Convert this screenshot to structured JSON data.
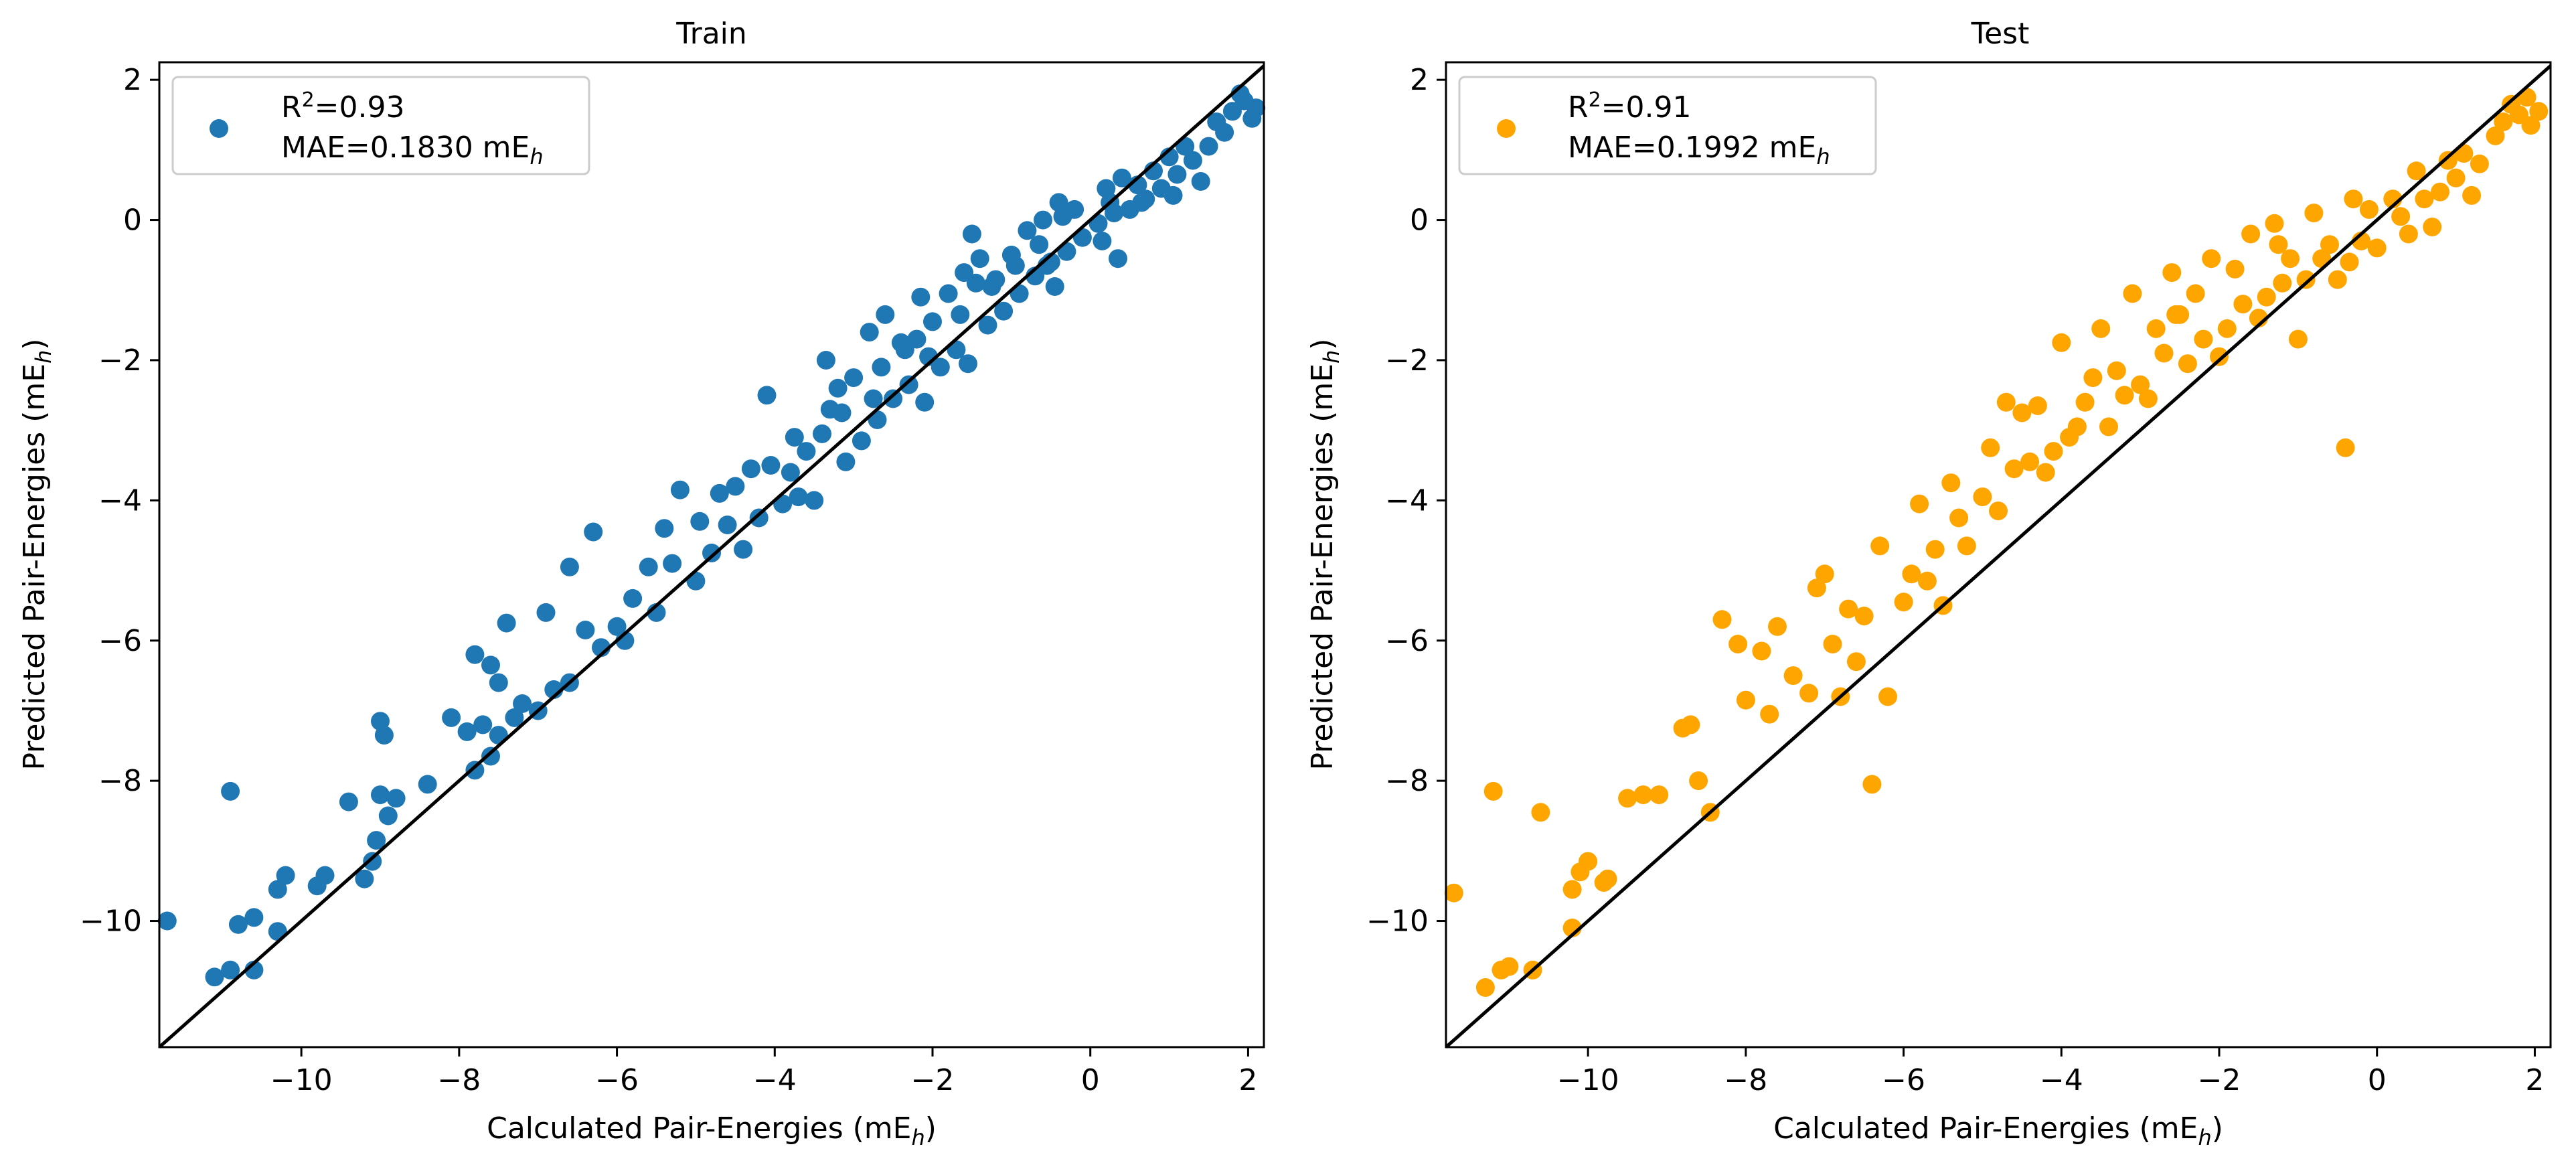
{
  "figure": {
    "background": "#ffffff"
  },
  "chart_data": [
    {
      "type": "scatter",
      "title": "Train",
      "xlabel": "Calculated Pair-Energies (mE",
      "xlabel_sub": "h",
      "xlabel_tail": ")",
      "ylabel": "Predicted Pair-Energies (mE",
      "ylabel_sub": "h",
      "ylabel_tail": ")",
      "xlim": [
        -11.8,
        2.2
      ],
      "ylim": [
        -11.8,
        2.25
      ],
      "xticks": [
        -10,
        -8,
        -6,
        -4,
        -2,
        0,
        2
      ],
      "yticks": [
        -10,
        -8,
        -6,
        -4,
        -2,
        0,
        2
      ],
      "grid": false,
      "color": "#1f77b4",
      "legend": {
        "placement": "top-left",
        "line1_prefix": "R",
        "line1_sup": "2",
        "line1_value": "=0.93",
        "line2_prefix": "MAE=0.1830 mE",
        "line2_sub": "h"
      },
      "reference_line": {
        "from": [
          -11.8,
          -11.8
        ],
        "to": [
          2.2,
          2.2
        ],
        "color": "#000000"
      },
      "points": [
        [
          -11.7,
          -10.0
        ],
        [
          -11.1,
          -10.8
        ],
        [
          -10.9,
          -10.7
        ],
        [
          -10.6,
          -10.7
        ],
        [
          -10.8,
          -10.05
        ],
        [
          -10.3,
          -10.15
        ],
        [
          -10.9,
          -8.15
        ],
        [
          -10.6,
          -9.95
        ],
        [
          -10.3,
          -9.55
        ],
        [
          -10.2,
          -9.35
        ],
        [
          -9.8,
          -9.5
        ],
        [
          -9.7,
          -9.35
        ],
        [
          -9.2,
          -9.4
        ],
        [
          -9.1,
          -9.15
        ],
        [
          -9.05,
          -8.85
        ],
        [
          -8.9,
          -8.5
        ],
        [
          -9.0,
          -7.15
        ],
        [
          -8.95,
          -7.35
        ],
        [
          -9.4,
          -8.3
        ],
        [
          -9.0,
          -8.2
        ],
        [
          -8.8,
          -8.25
        ],
        [
          -8.4,
          -8.05
        ],
        [
          -8.1,
          -7.1
        ],
        [
          -7.9,
          -7.3
        ],
        [
          -7.7,
          -7.2
        ],
        [
          -7.8,
          -7.85
        ],
        [
          -7.6,
          -7.65
        ],
        [
          -7.5,
          -7.35
        ],
        [
          -7.3,
          -7.1
        ],
        [
          -7.4,
          -5.75
        ],
        [
          -7.6,
          -6.35
        ],
        [
          -7.8,
          -6.2
        ],
        [
          -7.5,
          -6.6
        ],
        [
          -7.2,
          -6.9
        ],
        [
          -7.0,
          -7.0
        ],
        [
          -6.8,
          -6.7
        ],
        [
          -6.6,
          -6.6
        ],
        [
          -6.9,
          -5.6
        ],
        [
          -6.6,
          -4.95
        ],
        [
          -6.3,
          -4.45
        ],
        [
          -6.4,
          -5.85
        ],
        [
          -6.2,
          -6.1
        ],
        [
          -6.0,
          -5.8
        ],
        [
          -5.8,
          -5.4
        ],
        [
          -5.6,
          -4.95
        ],
        [
          -5.4,
          -4.4
        ],
        [
          -5.2,
          -3.85
        ],
        [
          -5.5,
          -5.6
        ],
        [
          -5.0,
          -5.15
        ],
        [
          -4.8,
          -4.75
        ],
        [
          -4.6,
          -4.35
        ],
        [
          -4.5,
          -3.8
        ],
        [
          -4.3,
          -3.55
        ],
        [
          -4.1,
          -2.5
        ],
        [
          -4.4,
          -4.7
        ],
        [
          -4.2,
          -4.25
        ],
        [
          -3.9,
          -4.05
        ],
        [
          -3.8,
          -3.6
        ],
        [
          -3.6,
          -3.3
        ],
        [
          -3.4,
          -3.05
        ],
        [
          -3.3,
          -2.7
        ],
        [
          -3.2,
          -2.4
        ],
        [
          -3.0,
          -2.25
        ],
        [
          -2.8,
          -1.6
        ],
        [
          -2.6,
          -1.35
        ],
        [
          -2.4,
          -1.75
        ],
        [
          -3.5,
          -4.0
        ],
        [
          -3.1,
          -3.45
        ],
        [
          -2.9,
          -3.15
        ],
        [
          -2.7,
          -2.85
        ],
        [
          -2.5,
          -2.55
        ],
        [
          -2.3,
          -2.35
        ],
        [
          -2.2,
          -1.7
        ],
        [
          -2.0,
          -1.45
        ],
        [
          -1.8,
          -1.05
        ],
        [
          -1.6,
          -0.75
        ],
        [
          -1.4,
          -0.55
        ],
        [
          -1.5,
          -0.2
        ],
        [
          -2.1,
          -2.6
        ],
        [
          -1.9,
          -2.1
        ],
        [
          -1.7,
          -1.85
        ],
        [
          -1.3,
          -1.5
        ],
        [
          -1.1,
          -1.3
        ],
        [
          -0.9,
          -1.05
        ],
        [
          -1.2,
          -0.85
        ],
        [
          -1.0,
          -0.5
        ],
        [
          -0.8,
          -0.15
        ],
        [
          -0.6,
          0.0
        ],
        [
          -0.4,
          0.25
        ],
        [
          -0.2,
          0.15
        ],
        [
          -0.7,
          -0.8
        ],
        [
          -0.5,
          -0.6
        ],
        [
          -0.3,
          -0.45
        ],
        [
          -0.1,
          -0.25
        ],
        [
          0.1,
          -0.05
        ],
        [
          0.3,
          0.1
        ],
        [
          0.2,
          0.45
        ],
        [
          0.4,
          0.6
        ],
        [
          0.6,
          0.5
        ],
        [
          0.8,
          0.7
        ],
        [
          1.0,
          0.9
        ],
        [
          1.2,
          1.05
        ],
        [
          0.5,
          0.15
        ],
        [
          0.7,
          0.3
        ],
        [
          0.9,
          0.45
        ],
        [
          1.1,
          0.65
        ],
        [
          1.3,
          0.85
        ],
        [
          1.5,
          1.05
        ],
        [
          1.6,
          1.4
        ],
        [
          1.8,
          1.55
        ],
        [
          1.95,
          1.7
        ],
        [
          2.1,
          1.6
        ],
        [
          1.9,
          1.8
        ],
        [
          2.05,
          1.45
        ],
        [
          -5.9,
          -6.0
        ],
        [
          -4.95,
          -4.3
        ],
        [
          -3.7,
          -3.95
        ],
        [
          -2.65,
          -2.1
        ],
        [
          -1.65,
          -1.35
        ],
        [
          -0.55,
          -0.65
        ],
        [
          -4.7,
          -3.9
        ],
        [
          -3.75,
          -3.1
        ],
        [
          -2.35,
          -1.85
        ],
        [
          -1.25,
          -0.95
        ],
        [
          -0.35,
          0.05
        ],
        [
          0.65,
          0.25
        ],
        [
          -5.3,
          -4.9
        ],
        [
          -4.05,
          -3.5
        ],
        [
          -3.15,
          -2.75
        ],
        [
          -2.05,
          -1.95
        ],
        [
          -0.95,
          -0.65
        ],
        [
          0.15,
          -0.3
        ],
        [
          -2.15,
          -1.1
        ],
        [
          -1.45,
          -0.9
        ],
        [
          -0.65,
          -0.35
        ],
        [
          0.25,
          0.25
        ],
        [
          1.05,
          0.35
        ],
        [
          1.7,
          1.25
        ],
        [
          -3.35,
          -2.0
        ],
        [
          -2.75,
          -2.55
        ],
        [
          -1.55,
          -2.05
        ],
        [
          -0.45,
          -0.95
        ],
        [
          0.35,
          -0.55
        ],
        [
          1.4,
          0.55
        ]
      ]
    },
    {
      "type": "scatter",
      "title": "Test",
      "xlabel": "Calculated Pair-Energies (mE",
      "xlabel_sub": "h",
      "xlabel_tail": ")",
      "ylabel": "Predicted Pair-Energies (mE",
      "ylabel_sub": "h",
      "ylabel_tail": ")",
      "xlim": [
        -11.8,
        2.2
      ],
      "ylim": [
        -11.8,
        2.25
      ],
      "xticks": [
        -10,
        -8,
        -6,
        -4,
        -2,
        0,
        2
      ],
      "yticks": [
        -10,
        -8,
        -6,
        -4,
        -2,
        0,
        2
      ],
      "grid": false,
      "color": "#ffa500",
      "legend": {
        "placement": "top-left",
        "line1_prefix": "R",
        "line1_sup": "2",
        "line1_value": "=0.91",
        "line2_prefix": "MAE=0.1992 mE",
        "line2_sub": "h"
      },
      "reference_line": {
        "from": [
          -11.8,
          -11.8
        ],
        "to": [
          2.2,
          2.2
        ],
        "color": "#000000"
      },
      "points": [
        [
          -11.7,
          -9.6
        ],
        [
          -11.3,
          -10.95
        ],
        [
          -11.1,
          -10.7
        ],
        [
          -11.0,
          -10.65
        ],
        [
          -10.7,
          -10.7
        ],
        [
          -11.2,
          -8.15
        ],
        [
          -10.6,
          -8.45
        ],
        [
          -10.2,
          -9.55
        ],
        [
          -10.1,
          -9.3
        ],
        [
          -10.0,
          -9.15
        ],
        [
          -9.8,
          -9.45
        ],
        [
          -9.75,
          -9.4
        ],
        [
          -10.2,
          -10.1
        ],
        [
          -9.5,
          -8.25
        ],
        [
          -9.3,
          -8.2
        ],
        [
          -9.1,
          -8.2
        ],
        [
          -8.8,
          -7.25
        ],
        [
          -8.7,
          -7.2
        ],
        [
          -8.6,
          -8.0
        ],
        [
          -8.45,
          -8.45
        ],
        [
          -8.3,
          -5.7
        ],
        [
          -8.1,
          -6.05
        ],
        [
          -8.0,
          -6.85
        ],
        [
          -7.8,
          -6.15
        ],
        [
          -7.7,
          -7.05
        ],
        [
          -7.6,
          -5.8
        ],
        [
          -7.4,
          -6.5
        ],
        [
          -7.2,
          -6.75
        ],
        [
          -7.1,
          -5.25
        ],
        [
          -7.0,
          -5.05
        ],
        [
          -6.9,
          -6.05
        ],
        [
          -6.8,
          -6.8
        ],
        [
          -6.6,
          -6.3
        ],
        [
          -6.5,
          -5.65
        ],
        [
          -6.4,
          -8.05
        ],
        [
          -6.2,
          -6.8
        ],
        [
          -6.3,
          -4.65
        ],
        [
          -6.0,
          -5.45
        ],
        [
          -5.8,
          -4.05
        ],
        [
          -5.6,
          -4.7
        ],
        [
          -5.5,
          -5.5
        ],
        [
          -5.4,
          -3.75
        ],
        [
          -5.2,
          -4.65
        ],
        [
          -5.0,
          -3.95
        ],
        [
          -4.9,
          -3.25
        ],
        [
          -4.7,
          -2.6
        ],
        [
          -4.5,
          -2.75
        ],
        [
          -4.3,
          -2.65
        ],
        [
          -4.2,
          -3.6
        ],
        [
          -4.0,
          -1.75
        ],
        [
          -3.8,
          -2.95
        ],
        [
          -3.6,
          -2.25
        ],
        [
          -3.5,
          -1.55
        ],
        [
          -3.3,
          -2.15
        ],
        [
          -3.1,
          -1.05
        ],
        [
          -3.0,
          -2.35
        ],
        [
          -2.8,
          -1.55
        ],
        [
          -2.6,
          -0.75
        ],
        [
          -2.5,
          -1.35
        ],
        [
          -2.3,
          -1.05
        ],
        [
          -2.1,
          -0.55
        ],
        [
          -2.0,
          -1.95
        ],
        [
          -1.8,
          -0.7
        ],
        [
          -1.6,
          -0.2
        ],
        [
          -1.5,
          -1.4
        ],
        [
          -1.3,
          -0.05
        ],
        [
          -1.1,
          -0.55
        ],
        [
          -1.0,
          -1.7
        ],
        [
          -0.8,
          0.1
        ],
        [
          -0.6,
          -0.35
        ],
        [
          -0.5,
          -0.85
        ],
        [
          -0.4,
          -3.25
        ],
        [
          -0.3,
          0.3
        ],
        [
          -0.1,
          0.15
        ],
        [
          0.0,
          -0.4
        ],
        [
          0.2,
          0.3
        ],
        [
          0.4,
          -0.2
        ],
        [
          0.5,
          0.7
        ],
        [
          0.7,
          -0.1
        ],
        [
          0.8,
          0.4
        ],
        [
          1.0,
          0.6
        ],
        [
          1.1,
          0.95
        ],
        [
          1.3,
          0.8
        ],
        [
          1.5,
          1.2
        ],
        [
          1.6,
          1.4
        ],
        [
          1.8,
          1.5
        ],
        [
          1.9,
          1.75
        ],
        [
          2.05,
          1.55
        ],
        [
          1.95,
          1.35
        ],
        [
          1.7,
          1.65
        ],
        [
          -5.9,
          -5.05
        ],
        [
          -4.8,
          -4.15
        ],
        [
          -3.9,
          -3.1
        ],
        [
          -2.9,
          -2.55
        ],
        [
          -1.9,
          -1.55
        ],
        [
          -0.9,
          -0.85
        ],
        [
          -4.6,
          -3.55
        ],
        [
          -3.7,
          -2.6
        ],
        [
          -2.7,
          -1.9
        ],
        [
          -1.7,
          -1.2
        ],
        [
          -0.7,
          -0.55
        ],
        [
          0.3,
          0.05
        ],
        [
          -5.3,
          -4.25
        ],
        [
          -4.1,
          -3.3
        ],
        [
          -3.2,
          -2.5
        ],
        [
          -2.2,
          -1.7
        ],
        [
          -1.2,
          -0.9
        ],
        [
          -0.2,
          -0.3
        ],
        [
          -3.4,
          -2.95
        ],
        [
          -2.4,
          -2.05
        ],
        [
          -1.4,
          -1.1
        ],
        [
          -0.35,
          -0.6
        ],
        [
          0.6,
          0.3
        ],
        [
          1.2,
          0.35
        ],
        [
          -6.7,
          -5.55
        ],
        [
          -5.7,
          -5.15
        ],
        [
          -4.4,
          -3.45
        ],
        [
          -2.55,
          -1.35
        ],
        [
          -1.25,
          -0.35
        ],
        [
          0.9,
          0.85
        ]
      ]
    }
  ]
}
